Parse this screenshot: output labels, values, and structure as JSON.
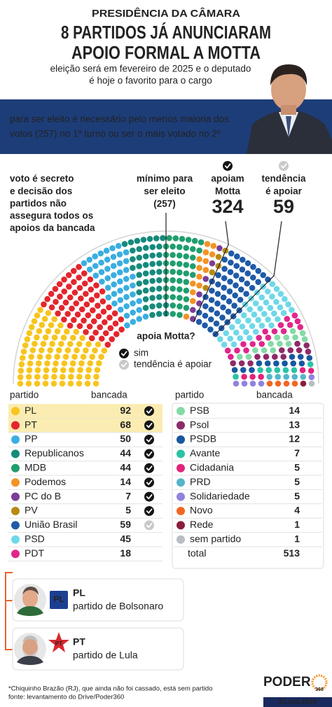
{
  "header": {
    "kicker": "PRESIDÊNCIA DA CÂMARA",
    "title": [
      "8 PARTIDOS JÁ ANUNCIARAM",
      "APOIO FORMAL A MOTTA"
    ],
    "subtitle": [
      "eleição será em fevereiro de 2025 e o deputado",
      "é hoje o favorito para o cargo"
    ]
  },
  "banner": [
    "para ser eleito é necessário pelo menos maioria dos",
    "votos (257) no 1º turno ou ser o mais votado no 2º"
  ],
  "note": {
    "highlight": "voto é secreto",
    "lines": [
      "e decisão dos",
      "partidos não",
      "assegura todos os",
      "apoios da bancada"
    ]
  },
  "thresholds": {
    "minimum": {
      "label": [
        "mínimo para",
        "ser eleito"
      ],
      "value": 257,
      "value_label": "(257)"
    },
    "support": {
      "label": [
        "apoiam",
        "Motta"
      ],
      "value": 324,
      "status": "yes"
    },
    "leaning": {
      "label": [
        "tendência",
        "é apoiar"
      ],
      "value": 59,
      "status": "leaning"
    }
  },
  "legend": {
    "title": "apoia Motta?",
    "items": [
      {
        "label": "sim",
        "status": "yes"
      },
      {
        "label": "tendência é apoiar",
        "status": "leaning"
      }
    ]
  },
  "table_left": {
    "columns": [
      "partido",
      "bancada"
    ],
    "rows": [
      {
        "party": "PL",
        "seats": 92,
        "color": "#f7c51e",
        "status": "yes",
        "highlight": true
      },
      {
        "party": "PT",
        "seats": 68,
        "color": "#e3262d",
        "status": "yes",
        "highlight": true
      },
      {
        "party": "PP",
        "seats": 50,
        "color": "#3aaee0",
        "status": "yes"
      },
      {
        "party": "Republicanos",
        "seats": 44,
        "color": "#158a7c",
        "status": "yes"
      },
      {
        "party": "MDB",
        "seats": 44,
        "color": "#1f9e6e",
        "status": "yes"
      },
      {
        "party": "Podemos",
        "seats": 14,
        "color": "#f39324",
        "status": "yes"
      },
      {
        "party": "PC do B",
        "seats": 7,
        "color": "#7a3e96",
        "status": "yes"
      },
      {
        "party": "PV",
        "seats": 5,
        "color": "#b78a12",
        "status": "yes"
      },
      {
        "party": "União Brasil",
        "seats": 59,
        "color": "#1f5aa8",
        "status": "leaning"
      },
      {
        "party": "PSD",
        "seats": 45,
        "color": "#6fd8e8"
      },
      {
        "party": "PDT",
        "seats": 18,
        "color": "#e0268b"
      }
    ]
  },
  "table_right": {
    "columns": [
      "partido",
      "bancada"
    ],
    "rows": [
      {
        "party": "PSB",
        "seats": 14,
        "color": "#82dba4"
      },
      {
        "party": "Psol",
        "seats": 13,
        "color": "#8e2a69"
      },
      {
        "party": "PSDB",
        "seats": 12,
        "color": "#17589e"
      },
      {
        "party": "Avante",
        "seats": 7,
        "color": "#2bc3a4"
      },
      {
        "party": "Cidadania",
        "seats": 5,
        "color": "#e2237b"
      },
      {
        "party": "PRD",
        "seats": 5,
        "color": "#55b5c9"
      },
      {
        "party": "Solidariedade",
        "seats": 5,
        "color": "#8f83dc"
      },
      {
        "party": "Novo",
        "seats": 4,
        "color": "#f26622"
      },
      {
        "party": "Rede",
        "seats": 1,
        "color": "#8c1c3c"
      },
      {
        "party": "sem partido",
        "seats": 1,
        "color": "#b6bdc3"
      }
    ],
    "total": {
      "label": "total",
      "seats": 513
    }
  },
  "parties": [
    {
      "abbr": "PL",
      "text": "partido de Bolsonaro"
    },
    {
      "abbr": "PT",
      "text": "partido de Lula"
    }
  ],
  "footer": {
    "notes": [
      "*Chiquinho Brazão (RJ), que ainda não foi cassado, está sem partido",
      "fonte: levantamento do Drive/Poder360"
    ],
    "logo": "PODER",
    "logo_sub": "360",
    "date": "31.out.2024"
  }
}
